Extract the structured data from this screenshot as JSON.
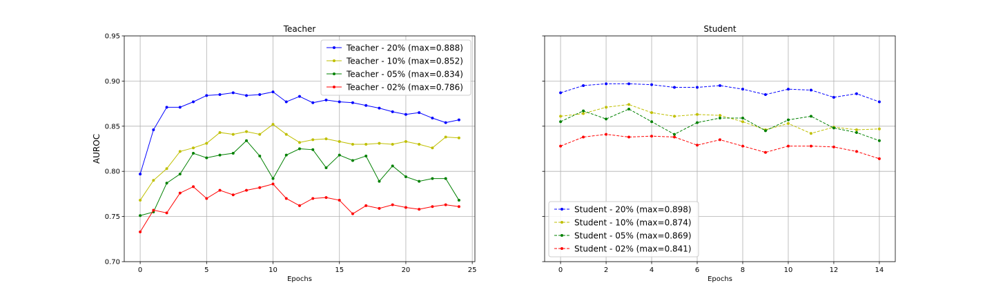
{
  "chart_data": [
    {
      "type": "line",
      "title": "Teacher",
      "xlabel": "Epochs",
      "ylabel": "AUROC",
      "xlim": [
        -1.2,
        25.2
      ],
      "ylim": [
        0.7,
        0.95
      ],
      "xticks": [
        0,
        5,
        10,
        15,
        20,
        25
      ],
      "yticks": [
        0.7,
        0.75,
        0.8,
        0.85,
        0.9,
        0.95
      ],
      "grid": true,
      "legend_position": "top-right",
      "x": [
        0,
        1,
        2,
        3,
        4,
        5,
        6,
        7,
        8,
        9,
        10,
        11,
        12,
        13,
        14,
        15,
        16,
        17,
        18,
        19,
        20,
        21,
        22,
        23,
        24
      ],
      "series": [
        {
          "name": "Teacher - 20%  (max=0.888)",
          "color": "#0000ff",
          "dash": "solid",
          "values": [
            0.797,
            0.846,
            0.871,
            0.871,
            0.877,
            0.884,
            0.885,
            0.887,
            0.884,
            0.885,
            0.888,
            0.877,
            0.883,
            0.876,
            0.879,
            0.877,
            0.876,
            0.873,
            0.87,
            0.866,
            0.863,
            0.865,
            0.859,
            0.854,
            0.857
          ]
        },
        {
          "name": "Teacher - 10%  (max=0.852)",
          "color": "#bfbf00",
          "dash": "solid",
          "values": [
            0.768,
            0.79,
            0.803,
            0.822,
            0.826,
            0.831,
            0.843,
            0.841,
            0.844,
            0.841,
            0.852,
            0.841,
            0.832,
            0.835,
            0.836,
            0.833,
            0.83,
            0.83,
            0.831,
            0.83,
            0.833,
            0.83,
            0.826,
            0.838,
            0.837
          ]
        },
        {
          "name": "Teacher - 05%  (max=0.834)",
          "color": "#008000",
          "dash": "solid",
          "values": [
            0.751,
            0.755,
            0.787,
            0.797,
            0.82,
            0.815,
            0.818,
            0.82,
            0.834,
            0.817,
            0.792,
            0.818,
            0.825,
            0.824,
            0.804,
            0.818,
            0.812,
            0.817,
            0.789,
            0.806,
            0.794,
            0.789,
            0.792,
            0.792,
            0.768
          ]
        },
        {
          "name": "Teacher - 02%  (max=0.786)",
          "color": "#ff0000",
          "dash": "solid",
          "values": [
            0.733,
            0.757,
            0.754,
            0.776,
            0.783,
            0.77,
            0.779,
            0.774,
            0.779,
            0.782,
            0.786,
            0.77,
            0.762,
            0.77,
            0.771,
            0.768,
            0.753,
            0.762,
            0.759,
            0.763,
            0.76,
            0.758,
            0.761,
            0.763,
            0.761
          ]
        }
      ]
    },
    {
      "type": "line",
      "title": "Student",
      "xlabel": "Epochs",
      "ylabel": "",
      "xlim": [
        -0.7,
        14.7
      ],
      "ylim": [
        0.7,
        0.95
      ],
      "xticks": [
        0,
        2,
        4,
        6,
        8,
        10,
        12,
        14
      ],
      "yticks": [
        0.7,
        0.75,
        0.8,
        0.85,
        0.9,
        0.95
      ],
      "grid": true,
      "legend_position": "bottom-left",
      "x": [
        0,
        1,
        2,
        3,
        4,
        5,
        6,
        7,
        8,
        9,
        10,
        11,
        12,
        13,
        14
      ],
      "series": [
        {
          "name": "Student - 20%  (max=0.898)",
          "color": "#0000ff",
          "dash": "dashed",
          "values": [
            0.887,
            0.895,
            0.897,
            0.897,
            0.896,
            0.893,
            0.893,
            0.895,
            0.891,
            0.885,
            0.891,
            0.89,
            0.882,
            0.886,
            0.877
          ]
        },
        {
          "name": "Student - 10%  (max=0.874)",
          "color": "#bfbf00",
          "dash": "dashed",
          "values": [
            0.861,
            0.864,
            0.871,
            0.874,
            0.865,
            0.861,
            0.863,
            0.862,
            0.855,
            0.846,
            0.853,
            0.842,
            0.849,
            0.846,
            0.847
          ]
        },
        {
          "name": "Student - 05%  (max=0.869)",
          "color": "#008000",
          "dash": "dashed",
          "values": [
            0.855,
            0.867,
            0.858,
            0.869,
            0.855,
            0.841,
            0.854,
            0.859,
            0.859,
            0.845,
            0.857,
            0.861,
            0.848,
            0.843,
            0.834
          ]
        },
        {
          "name": "Student - 02%  (max=0.841)",
          "color": "#ff0000",
          "dash": "dashed",
          "values": [
            0.828,
            0.838,
            0.841,
            0.838,
            0.839,
            0.838,
            0.829,
            0.835,
            0.828,
            0.821,
            0.828,
            0.828,
            0.827,
            0.822,
            0.814
          ]
        }
      ]
    }
  ]
}
